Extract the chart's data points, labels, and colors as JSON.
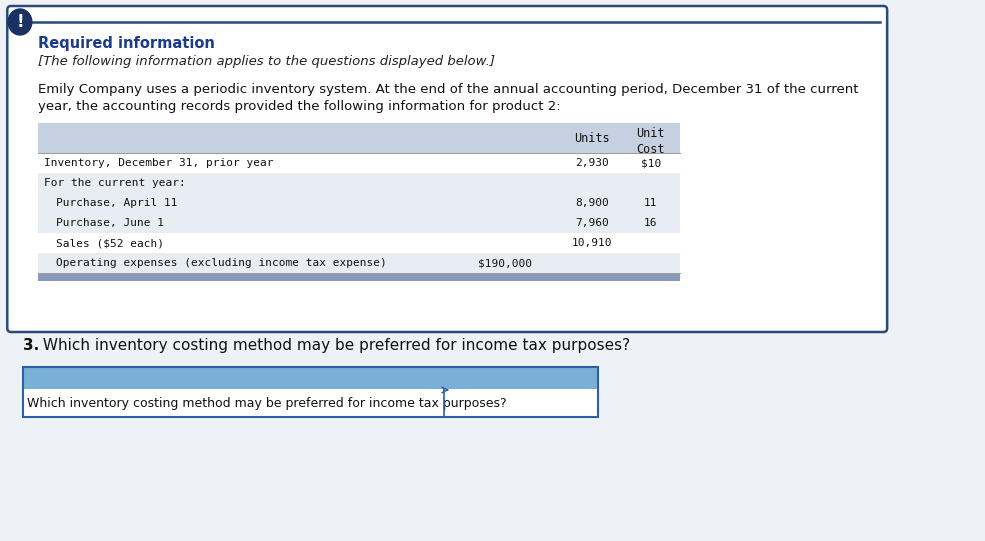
{
  "bg_color": "#eef1f5",
  "card_color": "#ffffff",
  "card_border_color": "#2b4a7a",
  "icon_color": "#1a3263",
  "required_info_color": "#1a3a8c",
  "required_info_text": "Required information",
  "italic_text": "[The following information applies to the questions displayed below.]",
  "body_text_line1": "Emily Company uses a periodic inventory system. At the end of the annual accounting period, December 31 of the current",
  "body_text_line2": "year, the accounting records provided the following information for product 2:",
  "table_header_bg": "#c5d0e0",
  "table_row_bg_odd": "#e8ecf3",
  "table_row_bg_even": "#ffffff",
  "table_bottom_bar_color": "#8899bb",
  "col_units_header": "Units",
  "col_unit_cost_header": "Unit\nCost",
  "table_rows": [
    {
      "label": "Inventory, December 31, prior year",
      "indent": 0,
      "units": "2,930",
      "unit_cost": "$10",
      "extra_val": ""
    },
    {
      "label": "For the current year:",
      "indent": 0,
      "units": "",
      "unit_cost": "",
      "extra_val": ""
    },
    {
      "label": "Purchase, April 11",
      "indent": 1,
      "units": "8,900",
      "unit_cost": "11",
      "extra_val": ""
    },
    {
      "label": "Purchase, June 1",
      "indent": 1,
      "units": "7,960",
      "unit_cost": "16",
      "extra_val": ""
    },
    {
      "label": "Sales ($52 each)",
      "indent": 1,
      "units": "10,910",
      "unit_cost": "",
      "extra_val": ""
    },
    {
      "label": "Operating expenses (excluding income tax expense)",
      "indent": 1,
      "units": "",
      "unit_cost": "",
      "extra_val": "$190,000"
    }
  ],
  "row_colors": [
    "#ffffff",
    "#e8ecf3",
    "#e8ecf3",
    "#e8ecf3",
    "#ffffff",
    "#e8ecf3"
  ],
  "question_num": "3.",
  "question_text": " Which inventory costing method may be preferred for income tax purposes?",
  "answer_box_label": "Which inventory costing method may be preferred for income tax purposes?",
  "answer_box_header_color": "#7ab0d8",
  "answer_box_border_color": "#2b5fa8",
  "answer_box_bg": "#ffffff"
}
